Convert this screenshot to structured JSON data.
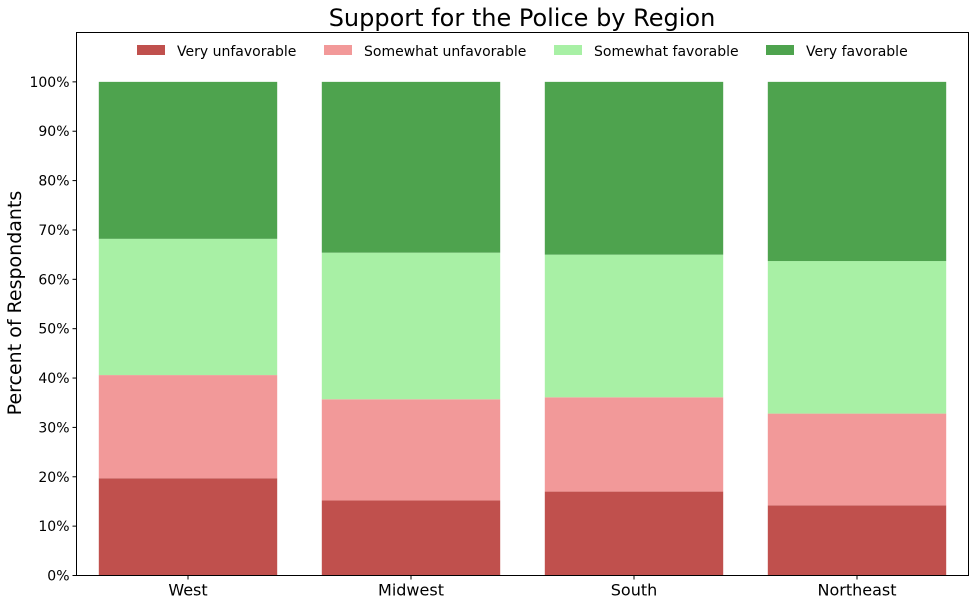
{
  "chart_data": {
    "type": "bar",
    "stacked": true,
    "title": "Support for the Police by Region",
    "xlabel": "",
    "ylabel": "Percent of Respondants",
    "ylim": [
      0,
      110
    ],
    "yticks": [
      0,
      10,
      20,
      30,
      40,
      50,
      60,
      70,
      80,
      90,
      100
    ],
    "ytick_labels": [
      "0%",
      "10%",
      "20%",
      "30%",
      "40%",
      "50%",
      "60%",
      "70%",
      "80%",
      "90%",
      "100%"
    ],
    "categories": [
      "West",
      "Midwest",
      "South",
      "Northeast"
    ],
    "series": [
      {
        "name": "Very unfavorable",
        "color": "#c0504d",
        "values": [
          19.7,
          15.2,
          17.0,
          14.2
        ]
      },
      {
        "name": "Somewhat unfavorable",
        "color": "#f29999",
        "values": [
          20.9,
          20.5,
          19.1,
          18.6
        ]
      },
      {
        "name": "Somewhat favorable",
        "color": "#a8f0a5",
        "values": [
          27.6,
          29.7,
          28.9,
          30.9
        ]
      },
      {
        "name": "Very favorable",
        "color": "#4ea34e",
        "values": [
          31.8,
          34.6,
          35.0,
          36.3
        ]
      }
    ],
    "legend": "top-center",
    "grid": false
  }
}
